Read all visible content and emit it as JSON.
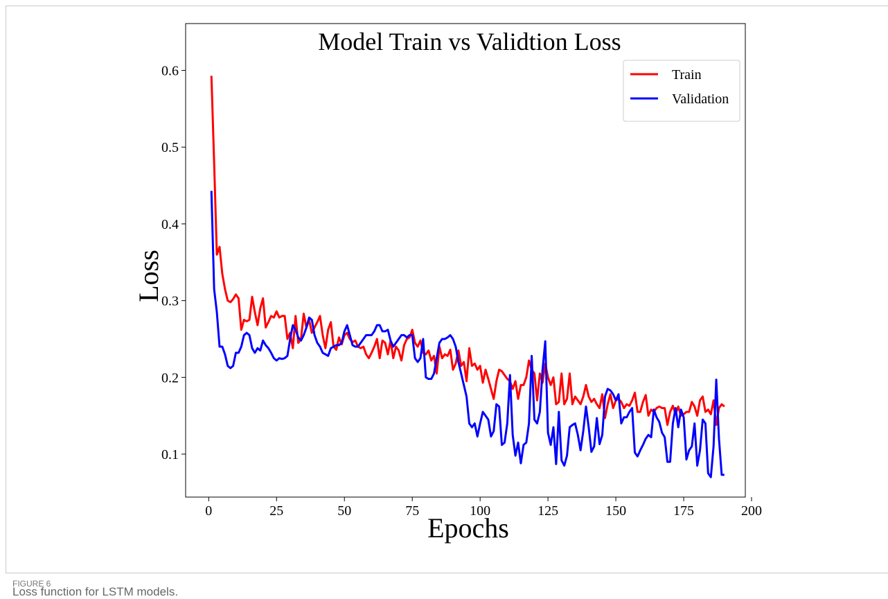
{
  "chart_data": {
    "type": "line",
    "title": "Model Train vs Validtion Loss",
    "x_label": "Epochs",
    "y_label": "Loss",
    "x": [
      1,
      2,
      3,
      4,
      5,
      6,
      7,
      8,
      9,
      10,
      11,
      12,
      13,
      14,
      15,
      16,
      17,
      18,
      19,
      20,
      21,
      22,
      23,
      24,
      25,
      26,
      27,
      28,
      29,
      30,
      31,
      32,
      33,
      34,
      35,
      36,
      37,
      38,
      39,
      40,
      41,
      42,
      43,
      44,
      45,
      46,
      47,
      48,
      49,
      50,
      51,
      52,
      53,
      54,
      55,
      56,
      57,
      58,
      59,
      60,
      61,
      62,
      63,
      64,
      65,
      66,
      67,
      68,
      69,
      70,
      71,
      72,
      73,
      74,
      75,
      76,
      77,
      78,
      79,
      80,
      81,
      82,
      83,
      84,
      85,
      86,
      87,
      88,
      89,
      90,
      91,
      92,
      93,
      94,
      95,
      96,
      97,
      98,
      99,
      100,
      101,
      102,
      103,
      104,
      105,
      106,
      107,
      108,
      109,
      110,
      111,
      112,
      113,
      114,
      115,
      116,
      117,
      118,
      119,
      120,
      121,
      122,
      123,
      124,
      125,
      126,
      127,
      128,
      129,
      130,
      131,
      132,
      133,
      134,
      135,
      136,
      137,
      138,
      139,
      140,
      141,
      142,
      143,
      144,
      145,
      146,
      147,
      148,
      149,
      150,
      151,
      152,
      153,
      154,
      155,
      156,
      157,
      158,
      159,
      160,
      161,
      162,
      163,
      164,
      165,
      166,
      167,
      168,
      169,
      170,
      171,
      172,
      173,
      174,
      175,
      176,
      177,
      178,
      179,
      180,
      181,
      182,
      183,
      184,
      185,
      186,
      187,
      188,
      189,
      190
    ],
    "series": [
      {
        "name": "Train",
        "color": "#ff0000",
        "values": [
          0.593,
          0.48,
          0.36,
          0.37,
          0.335,
          0.315,
          0.3,
          0.298,
          0.302,
          0.308,
          0.303,
          0.262,
          0.275,
          0.273,
          0.275,
          0.305,
          0.285,
          0.268,
          0.29,
          0.303,
          0.265,
          0.272,
          0.28,
          0.278,
          0.286,
          0.278,
          0.28,
          0.28,
          0.25,
          0.258,
          0.238,
          0.28,
          0.245,
          0.25,
          0.283,
          0.265,
          0.275,
          0.258,
          0.265,
          0.272,
          0.28,
          0.255,
          0.238,
          0.262,
          0.272,
          0.24,
          0.236,
          0.252,
          0.243,
          0.255,
          0.258,
          0.25,
          0.246,
          0.248,
          0.24,
          0.238,
          0.24,
          0.23,
          0.225,
          0.232,
          0.24,
          0.25,
          0.225,
          0.248,
          0.245,
          0.23,
          0.248,
          0.225,
          0.24,
          0.235,
          0.222,
          0.242,
          0.25,
          0.252,
          0.262,
          0.245,
          0.24,
          0.248,
          0.232,
          0.23,
          0.235,
          0.222,
          0.228,
          0.205,
          0.24,
          0.225,
          0.23,
          0.228,
          0.236,
          0.21,
          0.218,
          0.235,
          0.215,
          0.22,
          0.195,
          0.238,
          0.215,
          0.218,
          0.21,
          0.215,
          0.193,
          0.21,
          0.198,
          0.185,
          0.172,
          0.195,
          0.21,
          0.208,
          0.203,
          0.198,
          0.195,
          0.185,
          0.195,
          0.172,
          0.19,
          0.19,
          0.2,
          0.222,
          0.21,
          0.205,
          0.17,
          0.205,
          0.193,
          0.218,
          0.2,
          0.19,
          0.2,
          0.165,
          0.168,
          0.205,
          0.165,
          0.172,
          0.205,
          0.165,
          0.175,
          0.17,
          0.165,
          0.175,
          0.19,
          0.175,
          0.168,
          0.172,
          0.165,
          0.16,
          0.178,
          0.147,
          0.165,
          0.178,
          0.16,
          0.17,
          0.172,
          0.168,
          0.16,
          0.165,
          0.163,
          0.17,
          0.18,
          0.155,
          0.155,
          0.168,
          0.177,
          0.15,
          0.158,
          0.155,
          0.16,
          0.162,
          0.16,
          0.16,
          0.138,
          0.155,
          0.163,
          0.152,
          0.162,
          0.15,
          0.152,
          0.155,
          0.155,
          0.168,
          0.162,
          0.15,
          0.17,
          0.175,
          0.155,
          0.158,
          0.152,
          0.17,
          0.138,
          0.16,
          0.165,
          0.162
        ]
      },
      {
        "name": "Validation",
        "color": "#0000ff",
        "values": [
          0.443,
          0.315,
          0.285,
          0.24,
          0.24,
          0.23,
          0.215,
          0.212,
          0.215,
          0.232,
          0.232,
          0.24,
          0.255,
          0.258,
          0.255,
          0.238,
          0.232,
          0.238,
          0.235,
          0.248,
          0.242,
          0.238,
          0.232,
          0.225,
          0.222,
          0.225,
          0.224,
          0.225,
          0.228,
          0.25,
          0.268,
          0.262,
          0.252,
          0.248,
          0.255,
          0.265,
          0.278,
          0.275,
          0.255,
          0.245,
          0.24,
          0.232,
          0.23,
          0.228,
          0.238,
          0.24,
          0.242,
          0.242,
          0.245,
          0.26,
          0.268,
          0.255,
          0.242,
          0.24,
          0.24,
          0.245,
          0.25,
          0.255,
          0.255,
          0.255,
          0.26,
          0.268,
          0.268,
          0.26,
          0.26,
          0.262,
          0.248,
          0.24,
          0.245,
          0.25,
          0.255,
          0.255,
          0.252,
          0.255,
          0.255,
          0.225,
          0.22,
          0.225,
          0.25,
          0.2,
          0.198,
          0.198,
          0.205,
          0.225,
          0.245,
          0.25,
          0.25,
          0.252,
          0.255,
          0.25,
          0.24,
          0.22,
          0.205,
          0.19,
          0.175,
          0.14,
          0.135,
          0.14,
          0.123,
          0.14,
          0.155,
          0.15,
          0.145,
          0.123,
          0.13,
          0.165,
          0.162,
          0.112,
          0.115,
          0.14,
          0.203,
          0.125,
          0.098,
          0.115,
          0.088,
          0.112,
          0.115,
          0.14,
          0.228,
          0.145,
          0.14,
          0.155,
          0.21,
          0.247,
          0.128,
          0.112,
          0.135,
          0.087,
          0.155,
          0.092,
          0.085,
          0.098,
          0.135,
          0.138,
          0.14,
          0.125,
          0.105,
          0.13,
          0.162,
          0.135,
          0.103,
          0.11,
          0.147,
          0.113,
          0.125,
          0.175,
          0.185,
          0.183,
          0.178,
          0.17,
          0.178,
          0.14,
          0.148,
          0.148,
          0.155,
          0.16,
          0.102,
          0.097,
          0.105,
          0.112,
          0.12,
          0.125,
          0.122,
          0.158,
          0.148,
          0.142,
          0.128,
          0.122,
          0.09,
          0.09,
          0.14,
          0.16,
          0.135,
          0.158,
          0.148,
          0.093,
          0.105,
          0.11,
          0.14,
          0.085,
          0.105,
          0.145,
          0.14,
          0.075,
          0.07,
          0.11,
          0.197,
          0.12,
          0.073,
          0.073
        ]
      }
    ],
    "xlim": [
      -8.5,
      197.7
    ],
    "ylim": [
      0.044,
      0.661
    ],
    "xticks": [
      0,
      25,
      50,
      75,
      100,
      125,
      150,
      175,
      200
    ],
    "yticks": [
      0.1,
      0.2,
      0.3,
      0.4,
      0.5,
      0.6
    ],
    "grid": false,
    "legend": "upper right"
  },
  "figure": {
    "label": "FIGURE 6",
    "caption": "Loss function for LSTM models."
  }
}
